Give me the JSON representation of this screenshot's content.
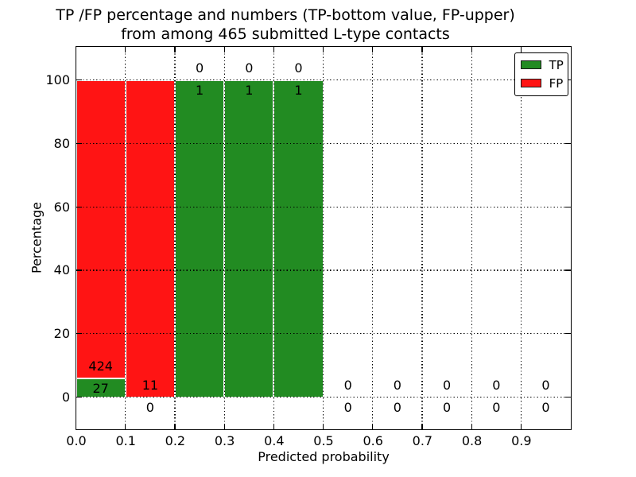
{
  "title": {
    "line1": "TP /FP percentage and numbers (TP-bottom value, FP-upper)",
    "line2": "from among 465 submitted L-type contacts"
  },
  "axes": {
    "xlabel": "Predicted probability",
    "ylabel": "Percentage"
  },
  "legend": {
    "items": [
      {
        "label": "TP",
        "color": "#228b22"
      },
      {
        "label": "FP",
        "color": "#ff1414"
      }
    ]
  },
  "chart_data": {
    "type": "bar",
    "subtype": "stacked-percentage",
    "title": "TP /FP percentage and numbers (TP-bottom value, FP-upper) from among 465 submitted L-type contacts",
    "xlabel": "Predicted probability",
    "ylabel": "Percentage",
    "xlim": [
      0.0,
      1.0
    ],
    "ylim": [
      -10,
      110
    ],
    "grid": "dotted",
    "legend_position": "upper-right",
    "total_contacts": 465,
    "bin_edges": [
      0.0,
      0.1,
      0.2,
      0.3,
      0.4,
      0.5,
      0.6,
      0.7,
      0.8,
      0.9,
      1.0
    ],
    "categories": [
      "0.0-0.1",
      "0.1-0.2",
      "0.2-0.3",
      "0.3-0.4",
      "0.4-0.5",
      "0.5-0.6",
      "0.6-0.7",
      "0.7-0.8",
      "0.8-0.9",
      "0.9-1.0"
    ],
    "x_ticks": [
      "0.0",
      "0.1",
      "0.2",
      "0.3",
      "0.4",
      "0.5",
      "0.6",
      "0.7",
      "0.8",
      "0.9"
    ],
    "y_ticks": [
      {
        "value": 0,
        "label": "0"
      },
      {
        "value": 20,
        "label": "20"
      },
      {
        "value": 40,
        "label": "40"
      },
      {
        "value": 60,
        "label": "60"
      },
      {
        "value": 80,
        "label": "80"
      },
      {
        "value": 100,
        "label": "100"
      }
    ],
    "series": [
      {
        "name": "TP",
        "color": "#228b22",
        "counts": [
          27,
          0,
          1,
          1,
          1,
          0,
          0,
          0,
          0,
          0
        ],
        "percent": [
          5.99,
          0,
          100,
          100,
          100,
          0,
          0,
          0,
          0,
          0
        ]
      },
      {
        "name": "FP",
        "color": "#ff1414",
        "counts": [
          424,
          11,
          0,
          0,
          0,
          0,
          0,
          0,
          0,
          0
        ],
        "percent": [
          94.01,
          100,
          0,
          0,
          0,
          0,
          0,
          0,
          0,
          0
        ]
      }
    ]
  }
}
